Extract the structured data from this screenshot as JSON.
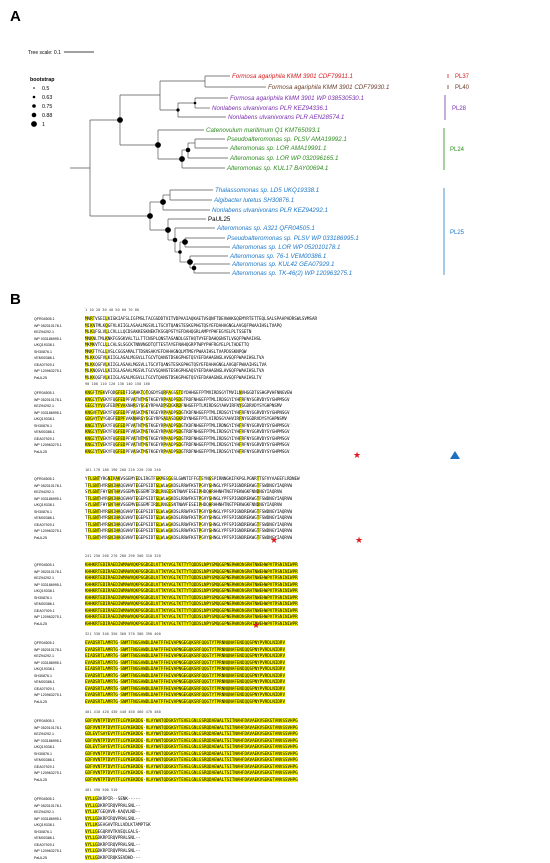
{
  "panels": {
    "a": "A",
    "b": "B"
  },
  "tree": {
    "scale_label": "Tree scale: 0.1",
    "legend_title": "bootstrap",
    "legend_values": [
      "0.5",
      "0.63",
      "0.75",
      "0.88",
      "1"
    ],
    "leaves": [
      {
        "label": "Formosa agariphila KMM 3901 CDF79911.1",
        "color": "#d7191c"
      },
      {
        "label": "Formosa agariphila KMM 3901 CDF79930.1",
        "color": "#6a3d2a"
      },
      {
        "label": "Formosa agariphila KMM 3901 WP 038530530.1",
        "color": "#7b2fb0"
      },
      {
        "label": "Nonlabens ulvanivorans PLR KEZ94336.1",
        "color": "#7b2fb0"
      },
      {
        "label": "Nonlabens ulvanivorans PLR AEN28574.1",
        "color": "#7b2fb0"
      },
      {
        "label": "Catenovulum maritimum Q1 KMT65093.1",
        "color": "#2e8b1f"
      },
      {
        "label": "Pseudoalteromonas sp. PLSV AMA19992.1",
        "color": "#2e8b1f"
      },
      {
        "label": "Alteromonas sp. LOR AMA19991.1",
        "color": "#2e8b1f"
      },
      {
        "label": "Alteromonas sp. LOR WP 032096165.1",
        "color": "#2e8b1f"
      },
      {
        "label": "Alteromonas sp. KUL17 BAY00694.1",
        "color": "#2e8b1f"
      },
      {
        "label": "Thalassomonas sp. LD5 UKQ19338.1",
        "color": "#1e78c8"
      },
      {
        "label": "Algibacter lutetus SH30876.1",
        "color": "#1e78c8"
      },
      {
        "label": "Nonlabens ulvanivorans PLR KEZ94292.1",
        "color": "#1e78c8"
      },
      {
        "label": "PaUL25",
        "color": "#000000"
      },
      {
        "label": "Alteromonas sp. A321 QFR04505.1",
        "color": "#1e78c8"
      },
      {
        "label": "Pseudoalteromonas sp. PLSV WP 033186995.1",
        "color": "#1e78c8"
      },
      {
        "label": "Alteromonas sp. LOR WP 052010178.1",
        "color": "#1e78c8"
      },
      {
        "label": "Alteromonas sp. 76-1 VEM00386.1",
        "color": "#1e78c8"
      },
      {
        "label": "Alteromonas sp. KUL42 GEA07929.1",
        "color": "#1e78c8"
      },
      {
        "label": "Alteromonas sp. TK-46(2) WP 120963275.1",
        "color": "#1e78c8"
      }
    ],
    "groups": [
      {
        "label": "PL37",
        "color": "#d7191c"
      },
      {
        "label": "PL40",
        "color": "#6a3d2a"
      },
      {
        "label": "PL28",
        "color": "#7b2fb0"
      },
      {
        "label": "PL24",
        "color": "#2e8b1f"
      },
      {
        "label": "PL25",
        "color": "#1e78c8"
      }
    ]
  },
  "alignment": {
    "sequence_names": [
      "QFR04505.1",
      "WP 052010178.1",
      "KEZ94292.1",
      "WP 033186995.1",
      "UKQ19338.1",
      "SH30876.1",
      "VEM00386.1",
      "GEA07929.1",
      "WP 120963275.1",
      "PaUL25"
    ],
    "blocks": [
      {
        "ruler": "1         10        20        30        40        50        60        70        80",
        "rows": [
          "MNRTVSEILKIGKIAFSLIGFMSLTACGSDDTVITVDPAAIAQKAETVSQNFTDEVWAKGQEMYRTETTEQLSALSPAAPADRSWLSVMSAR",
          "MIKNTMLKQGFVLKIIGLASAALMGSVLLTGCVTQANSTESKGPHGTQSYEFDAHAGNGLAVGQFPWAAIHSLTVAPQ",
          "MLKQFGLVLLCVLLLQCDSAKKESKNEKTKSGQPSTYEFDAHQGRLAMPYPHFEGYELPLTSSETN",
          "MNKNLTMLKNKFGSGKVALTLLTTCNSPLQNSTASANDLGSTHQTVYEFDAHQGNSTLVGQFPWAAIHSL",
          "MKMKVTCLLLCALSLSGCKTNNVNGDTQTTESTAYEFNAHQGRPTWPYPHFRGYELPLTADETTQ",
          "MNKFTYGLLVSLCGGSAMALTTDSNSAKYEFDAHAGNQLMTMGYPWAAIHSLTVAPDSSKNPQW",
          "MLKKQGFVLKIIGLASALMGSVLLTGCVTQANSTDSKGPHGTQSYEFDAHAGNGLAVGQFPWAAIHSLTVA",
          "MLKKQGFVLKIIGLASAALMGSVLLTGCVTQANSTESKGPHGTQSYEFDAHAGNGLAVGQFPWAAIHSLTVA",
          "MLKNQGVLLKIIGLASAALMGSVLTGCVSQANSTESKGPHGAQSYEFDAHAGNGLAVGQFPWAAIHSLTVA",
          "MLKKQGFVLKIIGLASALMGSVLLTGCVTQANSTDSKGPHGTQSYEFDAHAGNGLAVGQFPWAAIHSLTV"
        ]
      },
      {
        "ruler": "90        100       110       120       130       140       150       160",
        "rows": [
          "KNGFTYEKVFQDGFEDFIGAHKTQTQGDYSQRPAGSSTDYDHHGEFPTMVIRDSGYTMVILNVHGGDTGSHGPVHFNNGVEW",
          "KNGIYTVEKYFQGFEDPFVATNTMSTKGEYRPAADPSDGTRDFNHGEFPTMLIRDSGYIYHFRFNYGGRVDYSYGHPMSGV",
          "GEGIYYVQGFEDPFVAKNHRGYSGEYRPAADPSDGKRDFNHGEFPTLMIRDSGYAHVIRFNYGGDRVDYSYGHPNSMV",
          "KNGVFTVEKYFQGFEDPFVASKTMSTKGEYRPAADPSDGTKDFNHGEFPTMLIRDSGYIYHFRFNYGGRVDYSYGHPNSGV",
          "GDGAYTVYGQGFEDPFVAKNHRGYSGEYRPSADASDGKRDYNHGEFPTLVIRDSGYAHVIRFNYGGDRVDYSYGHPNSMV",
          "KNGIYTVEKYFQGFEDPFVATNTMSTKGEYRPAADPSDGTKDFNHGEFPTMLIRDNGYIYHFRFNYGGRVDYSYGHPMSGV",
          "KNGIYTVEKYFQGFEDPFVASKTMSTKGEYRPAADPSDGTRDFNHGEFPTMLIRDSGYIYHFRFNYGGRVDYSYGHPMSGV",
          "KNGIYTVEKYFQGFEDPFVATNTMSTKGEYRPAADPSDGTRDFNHGEFPTMLIRDSGYIYHFRFNYGGRVDYSYGHPMSGV",
          "KNGIYTVEKYFQGFEDPFVATNTMSTKGEYRPAADPSDGTRDFNHGEFPTMLIRDSGYIYHFRFNYGGRVDYSYGHPMSGV",
          "KNGIYTVEKYFQGFEDPFVASKTMSTKGEYRPAADPSDGTRDFNHGEFPTMLIRDSGYIYHFRFNYGGRVDYSYGHPMSGV"
        ]
      },
      {
        "ruler": "161       170       180       190       200       210       220       230       240",
        "rows": [
          "YFLGNTYRGNIRAKVSGEMYEDLIRGTFGKMEGGGSLGWNTIFFGTEYNGSPIRNNGKIFKPGLPGNRTTGFVYAAEEFLRDNEW",
          "TFLGNTHYRGNIHAQGVHVTEGEPSIDTGLWLWGKDSLRRWFKSTPGVYGHNGLYPFSPIGNDREKWGTFSWDNGYIAQRVW",
          "SYLGNTFHYGNTHAVSGEMVEEGEMFIRDLRNGESNTNWVFESEIPHDQHRHHNHTNGTPEKWGKFNNDNGYIAQRVW",
          "TFLGNTHYRGNIHAQGVHVTEGEPSIDTGLWLWGKDSLRRWFKSTPGVYGHNGLYPFSPIGNDREKWGTFSWDNGYIAQRVW",
          "SYLGNTFHYGNTHAVSGEMVEEGEMFIRDLRNGESNTNWVFESEIPHDQHRHHNHTNGTPEKWGKFNNDNGYIAQRVW",
          "TFLGNTHYRGNIHAQGVHVTEGEPSIDTGLWLWGKDSLRRWFKSTPGVYGHNGLYPFSPIGNDREKWGTFSWDNGYIAQRVW",
          "TFLGNTHYRGNIHAQGVHVTEGEPSIDTGLWLWGKDSLRRWFKSTPGVYGHNGLYPFSPIGNDREKWGTFSWDNGYIAQRVW",
          "TFLGNTHYRGNIHAQGVHVTEGEPSIDTGLWLWGKDSLRRWFKSTPGVYGHNGLYPFSPIGNDREKWGTFSWDNGYIAQRVW",
          "TFLGNTHYRGNIHAQGVHVTEGEPSIDTGLWLWGKDSLRRWFKSTPGVYGHNGLYPFSPIGNDREKWGTFSWDNGYIAQRVW",
          "TFLGNTHYRGNIHAQGVHVTEGEPSIDTGLWLWGKDSLRRWFKSTPGVYGHNGLYPFSPIGNDREKWGTFSWDNGYIAQRVW"
        ]
      },
      {
        "ruler": "241       250       260       270       280       290       300       310       320",
        "rows": [
          "KHHKRTEDIRAEDIWMAWVQKPGGDGDLVTTKYVGLTKTTYTQDDSLNPYGMQGGPNERWKDNGRHTNWEHWPVTRSNINIWPR",
          "KHHKRTEDIRAEDIWMAWVQKPGGDGDLVTTKYVGLTKTTYTQDDSLNPYGMQGGPNERWKDNGRHTNWEHWPVTRSNINIWPR",
          "KHHKRTEDIRAEDIWMAWVQKPGGDGDLVTTKYVGLTKTTYTQDDSLNPYGMQGGPNERWKDNGRHTNWEHWPVTRSNINIWPR",
          "KHHKRTEDIRAEDIWMAWVQKPGGDGDLVTTKYVGLTKTTYTQDDSLNPYGMQGGPNERWKDNGRHTNWEHWPVTRSNINIWPR",
          "KHHKRTEDIRAEDIWMAWVQKPGGDGDLVTTKYVGLTKTTYTQDDSLNPYGMQGGPNERWKDNGRHTNWEHWPVTRSNINIWPR",
          "KHHKRTEDIRAEDIWMAWVQKPGGDGDLVTTKYVGLTKTTYTQDDSLNPYGMQGGPNERWKDNGRHTNWEHWPVTRSNINIWPR",
          "KHHKRTEDIRAEDIWMAWVQKPGGDGDLVTTKYVGLTKTTYTQDDSLNPYGMQGGPNERWKDNGRHTNWEHWPVTRSNINIWPR",
          "KHHKRTEDIRAEDIWMAWVQKPGGDGDLVTTKYVGLTKTTYTQDDSLNPYGMQGGPNERWKDNGRHTNWEHWPVTRSNINIWPR",
          "KHHKRTEDIRAEDIWMAWVQKPGGDGDLVTTKYVGLTKTTYTQDDSLNPYGMQGGPNERWKDNGRHTNWEHWPVTRSNINIWPR",
          "KHHKRTEDIRAEDIWMAWVQKPGGDGDLVTTKYVGLTKTTYTQDDSLNPYGMQGGPNERWKDNGRHTNWEHWPVTRSNINIWPR"
        ]
      },
      {
        "ruler": "321       330       340       350       360       370       380       390       400",
        "rows": [
          "EVADSRTLAMRTG-SNMTFNGSAWDLDAHTPFHIVAPNGEGQKSRFQQGTYTPRNNQNAFENDQQSPNYPVRDLNIDRV",
          "EVADSRTLAMRTG-SNMTFNGSAWDLDAHTPFHIVAPNGEGQKSRFQQGTYTPRNNQNAFENDQQSPNYPVRDLNIDRV",
          "EIADSRTLAMRTG-SNMTFNGSAWDLDAHTPFHIVAPNGEGQKSRFQQGTYTPRNNQNAFENDQQSPNYPVRDLNIDRV",
          "EVADSRTLAMRTG-SNMTFNGSAWDLDAHTPFHIVAPNGEGQKSRFQQGTYTPRNNQNAFENDQQSPNYPVRDLNIDRV",
          "EIADSRTLAMRTG-SNMTFNGSAWDLDAHTPFHIVAPNGEGQKSRFQQGTYTPRNNQNAFENDQQSPNYPVRDLNIDRV",
          "EVADSRTLAMRTG-SNMTFNGSAWDLDAHTPFHIVAPNGEGQKSRFQQGTYTPRNNQNAFENDQQSPNYPVRDLNIDRV",
          "EVADSRTLAMRTG-SNMTFNGSAWDLDAHTPFHIVAPNGEGQKSRFQQGTYTPRNNQNAFENDQQSPNYPVRDLNIDRV",
          "EVADSRTLAMRTG-SNMTFNGSAWDLDAHTPFHIVAPNGEGQKSRFQQGTYTPRNNQNAFENDQQSPNYPVRDLNIDRV",
          "EVADSRTLAMRTG-SNMTFNGSAWDLDAHTPFHIVAPNGEGQKSRFQQGTYTPRNNQNAFENDQQSPNYPVRDLNIDRV",
          "EVADSRTLAMRTG-SNMTFNGSAWDLDAHTPFHIVAPNGEGQKSRFQQGTYTPRNNQNAFENDQQSPNYPVRDLNIDRV"
        ]
      },
      {
        "ruler": "401       410       420       430       440       450       460       470       480",
        "rows": [
          "GDFVVNTPTDVYTFLGYKEKDDG-VLAYWNTQDGKSYTEVELGNLGSRQDAEWALTSITNAHFDAVAEKVSEKGTANVSSVHPG",
          "GDFVVNTPTDVYTFLGYKEKDDG-VLAYWNTQDGKSYTEVELGNLGSRQDAEWALTSITNAHFDAVAEKVSEKGTANVSSVHPG",
          "GDLEVTSAYEVYTFLGYKEKDDG-VLAYWNTQDGKSYTEVELGNLGSRQDAEWALTSITNAHFDAVAEKVSEKGTANVSSVHPG",
          "GDFVVNTPTDVYTFLGYKEKDDG-VLAYWNTQDGKSYTEVELGNLGSRQDAEWALTSITNAHFDAVAEKVSEKGTANVSSVHPG",
          "GDLEVTSAYEVYTFLGYKEKDDG-VLAYWNTQDGKSYTEVELGNLGSRQDAEWALTSITNAHFDAVAEKVSEKGTANVSSVHPG",
          "GDFVVNTPTDVYTFLGYKEKDDG-VLAYWNTQDGKSYTEVELGNLGSRQDAEWALTSITNAHFDAVAEKVSEKGTANVSSVHPG",
          "GDFVVNTPTDVYTFLGYKEKDDG-VLAYWNTQDGKSYTEVELGNLGSRQDAEWALTSITNAHFDAVAEKVSEKGTANVSSVHPG",
          "GDFVVNTPTDVYTFLGYKEKDDG-VLAYWNTQDGKSYTEVELGNLGSRQDAEWALTSITNAHFDAVAEKVSEKGTANVSSVHPG",
          "GDFVVNTPTDVYTFLGYKEKDDG-VLAYWNTQDGKSYTEVELGNLGSRQDAEWALTSITNAHFDAVAEKVSEKGTANVSSVHPG",
          "GDFVVNTPTDVYTFLGYKEKDDG-VLAYWNTQDGKSYTEVELGNLGSRQDAEWALTSITNAHFDAVAEKVSEKGTANVSSVHPG"
        ]
      },
      {
        "ruler": "481       490       500       510",
        "rows": [
          "VYLLGDKRPIR--SENK-----",
          "VYLLGDKRPIRQVPRALSNL--",
          "VYLLKTGEQVVR-KAQVLND--",
          "VYLLGDKRPIRQVPRALSNL--",
          "VYLLKGEAGAVTRLLVDLKTAMPTSK",
          "VYLLGEGQRVVTKVEQLGALS-",
          "VYLLGDKRPIRQVPRALSNL--",
          "VYLLGDKRPIRQVPRALSNL--",
          "VYLLGDKRPIRQVPRALSNL--",
          "VYLLGDKRPIRQKSEVDHD---"
        ]
      }
    ],
    "legend": {
      "star_color": "#e0191f",
      "triangle_color": "#1f6fbf",
      "highlight_color": "#f4f000"
    }
  }
}
